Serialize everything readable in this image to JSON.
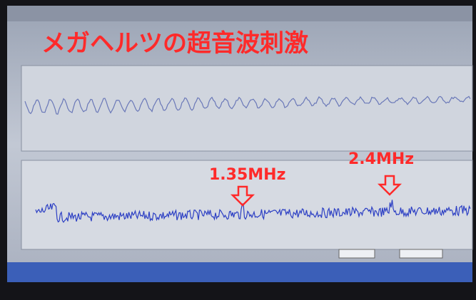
{
  "title": "メガヘルツの超音波刺激",
  "annotations": [
    {
      "label": "1.35MHz"
    },
    {
      "label": "2.4MHz"
    }
  ]
}
